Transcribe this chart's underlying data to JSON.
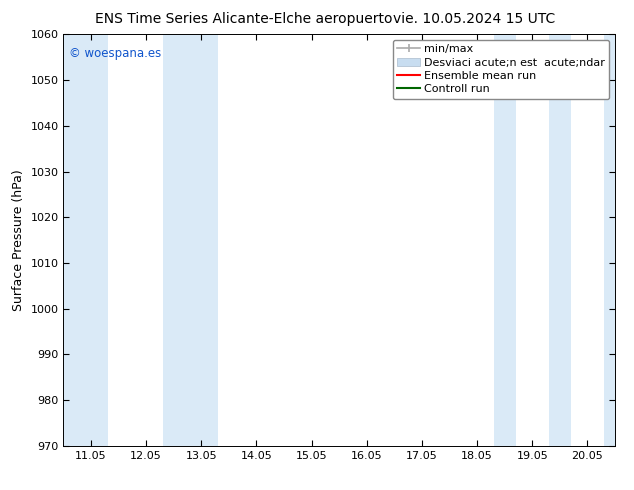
{
  "title_left": "ENS Time Series Alicante-Elche aeropuerto",
  "title_right": "vie. 10.05.2024 15 UTC",
  "ylabel": "Surface Pressure (hPa)",
  "watermark": "© woespana.es",
  "watermark_color": "#1155cc",
  "ylim": [
    970,
    1060
  ],
  "yticks": [
    970,
    980,
    990,
    1000,
    1010,
    1020,
    1030,
    1040,
    1050,
    1060
  ],
  "xtick_labels": [
    "11.05",
    "12.05",
    "13.05",
    "14.05",
    "15.05",
    "16.05",
    "17.05",
    "18.05",
    "19.05",
    "20.05"
  ],
  "x_values": [
    0.0,
    1.0,
    2.0,
    3.0,
    4.0,
    5.0,
    6.0,
    7.0,
    8.0,
    9.0
  ],
  "xlim": [
    -0.5,
    9.5
  ],
  "shaded_bands": [
    {
      "x_start": -0.5,
      "x_end": 0.3,
      "color": "#daeaf7"
    },
    {
      "x_start": 1.3,
      "x_end": 2.3,
      "color": "#daeaf7"
    },
    {
      "x_start": 7.3,
      "x_end": 7.7,
      "color": "#daeaf7"
    },
    {
      "x_start": 8.3,
      "x_end": 8.7,
      "color": "#daeaf7"
    },
    {
      "x_start": 9.3,
      "x_end": 9.5,
      "color": "#daeaf7"
    }
  ],
  "legend_labels": [
    "min/max",
    "Desviaci acute;n est  acute;ndar",
    "Ensemble mean run",
    "Controll run"
  ],
  "legend_colors_line": [
    "#aaaaaa",
    "#bbccdd",
    "red",
    "green"
  ],
  "bg_color": "#ffffff",
  "plot_bg_color": "#ffffff",
  "title_fontsize": 10,
  "tick_fontsize": 8,
  "ylabel_fontsize": 9,
  "legend_fontsize": 8
}
